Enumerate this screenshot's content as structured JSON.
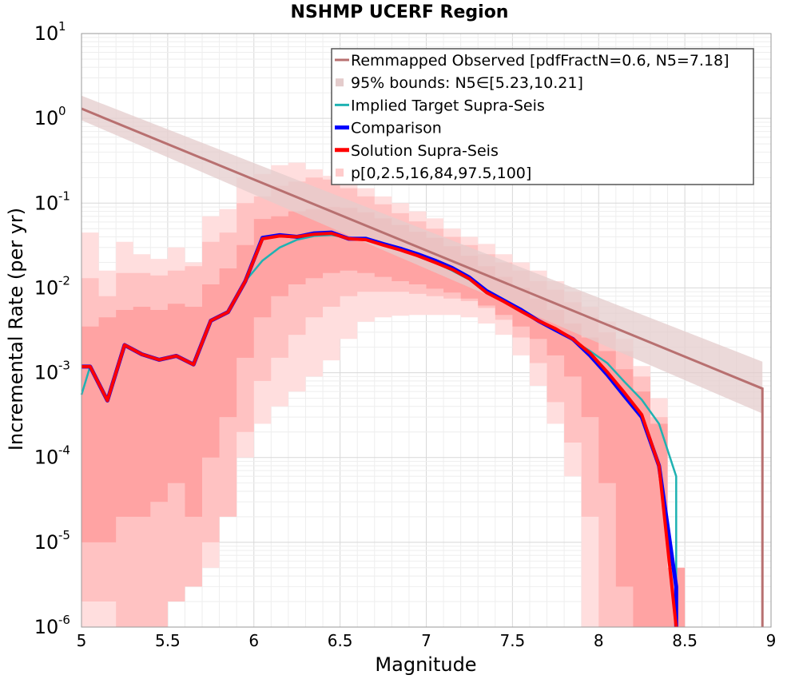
{
  "chart_data": {
    "type": "line",
    "title": "NSHMP UCERF Region",
    "xlabel": "Magnitude",
    "ylabel": "Incremental Rate (per yr)",
    "xlim": [
      5,
      9
    ],
    "ylim": [
      1e-06,
      10
    ],
    "yscale": "log",
    "grid": true,
    "legend_position": "top-right",
    "x_ticks": [
      "5",
      "5.5",
      "6",
      "6.5",
      "7",
      "7.5",
      "8",
      "8.5",
      "9"
    ],
    "y_ticks": [
      {
        "base": "10",
        "exp": "1"
      },
      {
        "base": "10",
        "exp": "0"
      },
      {
        "base": "10",
        "exp": "-1"
      },
      {
        "base": "10",
        "exp": "-2"
      },
      {
        "base": "10",
        "exp": "-3"
      },
      {
        "base": "10",
        "exp": "-4"
      },
      {
        "base": "10",
        "exp": "-5"
      },
      {
        "base": "10",
        "exp": "-6"
      }
    ],
    "legend": [
      {
        "label": "Remmapped Observed [pdfFractN=0.6, N5=7.18]",
        "color": "#b87070",
        "style": "line"
      },
      {
        "label": "95% bounds: N5∈[5.23,10.21]",
        "color": "#e4cccc",
        "style": "band"
      },
      {
        "label": "Implied Target Supra-Seis",
        "color": "#1fb2b2",
        "style": "line"
      },
      {
        "label": "Comparison",
        "color": "#0000ff",
        "style": "line"
      },
      {
        "label": "Solution Supra-Seis",
        "color": "#ff0000",
        "style": "line"
      },
      {
        "label": "p[0,2.5,16,84,97.5,100]",
        "color": "#ffcccc",
        "style": "band"
      }
    ],
    "observed": {
      "name": "Remmapped Observed [pdfFractN=0.6, N5=7.18]",
      "color": "#b87070",
      "x": [
        5,
        8.95,
        8.95
      ],
      "y": [
        1.3,
        0.00065,
        1e-06
      ]
    },
    "observed_bounds": {
      "name": "95% bounds: N5∈[5.23,10.21]",
      "color": "#e4cccc",
      "x": [
        5,
        8.95
      ],
      "lower": [
        0.95,
        0.00033
      ],
      "upper": [
        1.85,
        0.00135
      ]
    },
    "x": [
      5.05,
      5.15,
      5.25,
      5.35,
      5.45,
      5.55,
      5.65,
      5.75,
      5.85,
      5.95,
      6.05,
      6.15,
      6.25,
      6.35,
      6.45,
      6.55,
      6.65,
      6.75,
      6.85,
      6.95,
      7.05,
      7.15,
      7.25,
      7.35,
      7.45,
      7.55,
      7.65,
      7.75,
      7.85,
      7.95,
      8.05,
      8.15,
      8.25,
      8.35,
      8.45
    ],
    "series": [
      {
        "name": "Implied Target Supra-Seis",
        "color": "#1fb2b2",
        "values": [
          0.00118,
          0.00047,
          0.00212,
          0.00165,
          0.00142,
          0.00158,
          0.00125,
          0.0041,
          0.0052,
          0.012,
          0.021,
          0.03,
          0.037,
          0.041,
          0.042,
          0.039,
          0.037,
          0.032,
          0.028,
          0.024,
          0.02,
          0.016,
          0.0125,
          0.0087,
          0.0068,
          0.0052,
          0.0041,
          0.0033,
          0.0024,
          0.0018,
          0.0013,
          0.00078,
          0.00048,
          0.00025,
          6e-05
        ]
      },
      {
        "name": "Comparison",
        "color": "#0000ff",
        "values": [
          0.00118,
          0.00047,
          0.00212,
          0.00165,
          0.00142,
          0.00158,
          0.00125,
          0.0041,
          0.0052,
          0.012,
          0.039,
          0.042,
          0.04,
          0.044,
          0.045,
          0.038,
          0.038,
          0.033,
          0.029,
          0.025,
          0.021,
          0.0172,
          0.0133,
          0.0092,
          0.0071,
          0.0055,
          0.0041,
          0.0032,
          0.0025,
          0.0016,
          0.00095,
          0.00053,
          0.0003,
          8e-05,
          3e-06
        ]
      },
      {
        "name": "Solution Supra-Seis",
        "color": "#ff0000",
        "values": [
          0.00118,
          0.00047,
          0.00212,
          0.00165,
          0.00142,
          0.00158,
          0.00125,
          0.0041,
          0.0052,
          0.012,
          0.038,
          0.041,
          0.04,
          0.043,
          0.044,
          0.038,
          0.037,
          0.032,
          0.028,
          0.024,
          0.02,
          0.0165,
          0.0128,
          0.0088,
          0.0069,
          0.0053,
          0.0041,
          0.0033,
          0.0025,
          0.0017,
          0.00102,
          0.00058,
          0.00032,
          8e-05,
          1e-06
        ]
      }
    ],
    "percentile_bands": {
      "name": "p[0,2.5,16,84,97.5,100]",
      "x": [
        5.05,
        5.15,
        5.25,
        5.35,
        5.45,
        5.55,
        5.65,
        5.75,
        5.85,
        5.95,
        6.05,
        6.15,
        6.25,
        6.35,
        6.45,
        6.55,
        6.65,
        6.75,
        6.85,
        6.95,
        7.05,
        7.15,
        7.25,
        7.35,
        7.45,
        7.55,
        7.65,
        7.75,
        7.85,
        7.95,
        8.05,
        8.15,
        8.25,
        8.35,
        8.45
      ],
      "p0": [
        1e-06,
        1e-06,
        1e-06,
        1e-06,
        1e-06,
        5e-06,
        5e-06,
        5e-06,
        3e-05,
        0.0001,
        0.00025,
        0.0004,
        0.0006,
        0.0009,
        0.0014,
        0.0025,
        0.004,
        0.0045,
        0.0047,
        0.0048,
        0.0048,
        0.0048,
        0.0045,
        0.0038,
        0.0028,
        0.0016,
        0.0007,
        0.00025,
        6e-05,
        1e-06,
        1e-06,
        1e-06,
        1e-06,
        1e-06,
        1e-06
      ],
      "p2_5": [
        2e-06,
        2e-06,
        1e-06,
        1e-06,
        1e-06,
        2e-06,
        3e-06,
        1e-05,
        2e-05,
        0.0002,
        0.0008,
        0.0015,
        0.0028,
        0.0045,
        0.006,
        0.008,
        0.009,
        0.009,
        0.009,
        0.0085,
        0.008,
        0.0075,
        0.007,
        0.0058,
        0.0042,
        0.0026,
        0.0013,
        0.00045,
        0.00015,
        2e-05,
        1e-06,
        1e-06,
        1e-06,
        1e-06,
        1e-06
      ],
      "p16": [
        1e-05,
        1e-05,
        2e-05,
        2e-05,
        3e-05,
        5e-05,
        2e-05,
        0.0001,
        0.0003,
        0.0015,
        0.0045,
        0.008,
        0.011,
        0.013,
        0.015,
        0.016,
        0.015,
        0.0135,
        0.012,
        0.011,
        0.0098,
        0.0088,
        0.0075,
        0.0062,
        0.0048,
        0.0035,
        0.0025,
        0.0016,
        0.0009,
        0.0003,
        5e-05,
        3e-06,
        1e-06,
        1e-06,
        1e-06
      ],
      "p84": [
        0.0035,
        0.0045,
        0.0055,
        0.006,
        0.0055,
        0.0065,
        0.006,
        0.011,
        0.017,
        0.032,
        0.065,
        0.07,
        0.08,
        0.085,
        0.09,
        0.088,
        0.078,
        0.066,
        0.055,
        0.046,
        0.039,
        0.031,
        0.024,
        0.018,
        0.0135,
        0.01,
        0.0075,
        0.0055,
        0.0038,
        0.0026,
        0.0018,
        0.0011,
        0.0006,
        0.00025,
        5e-06
      ],
      "p97_5": [
        0.013,
        0.008,
        0.015,
        0.015,
        0.014,
        0.016,
        0.018,
        0.035,
        0.045,
        0.1,
        0.12,
        0.16,
        0.18,
        0.2,
        0.19,
        0.15,
        0.12,
        0.097,
        0.076,
        0.061,
        0.05,
        0.04,
        0.032,
        0.025,
        0.02,
        0.016,
        0.012,
        0.0095,
        0.0068,
        0.0045,
        0.003,
        0.0018,
        0.0009,
        0.0003,
        5e-06
      ],
      "p100": [
        0.045,
        0.016,
        0.035,
        0.025,
        0.022,
        0.03,
        0.02,
        0.07,
        0.085,
        0.2,
        0.22,
        0.28,
        0.3,
        0.25,
        0.21,
        0.18,
        0.15,
        0.12,
        0.1,
        0.08,
        0.066,
        0.05,
        0.04,
        0.033,
        0.025,
        0.02,
        0.016,
        0.012,
        0.009,
        0.006,
        0.004,
        0.0025,
        0.0012,
        0.0005,
        5e-06
      ],
      "colors": {
        "outer": "#ffdede",
        "middle": "#ffc2c2",
        "inner": "#ffa3a3"
      }
    }
  }
}
